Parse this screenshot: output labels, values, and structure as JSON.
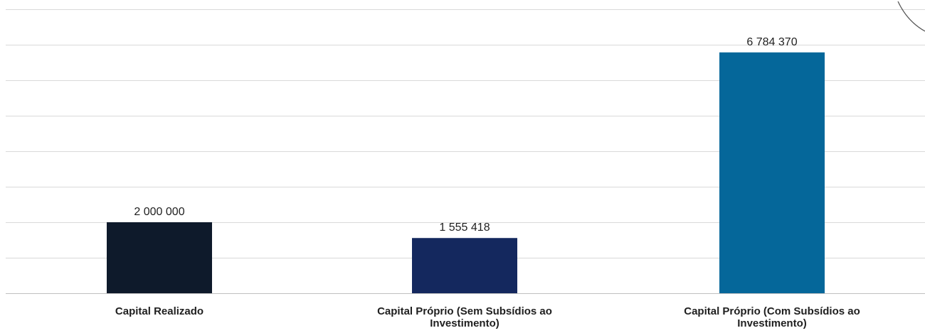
{
  "chart_data": {
    "type": "bar",
    "categories": [
      "Capital Realizado",
      "Capital Próprio (Sem Subsídios ao Investimento)",
      "Capital Próprio (Com Subsídios ao Investimento)"
    ],
    "category_label_lines": [
      [
        "Capital Realizado"
      ],
      [
        "Capital Próprio (Sem Subsídios ao",
        "Investimento)"
      ],
      [
        "Capital Próprio (Com Subsídios ao",
        "Investimento)"
      ]
    ],
    "values": [
      2000000,
      1555418,
      6784370
    ],
    "value_labels": [
      "2 000 000",
      "1 555 418",
      "6 784 370"
    ],
    "colors": [
      "#0e1a2b",
      "#14285e",
      "#05679a"
    ],
    "ylim": [
      0,
      8000000
    ],
    "y_tick_step": 1000000,
    "grid": true,
    "title": "",
    "xlabel": "",
    "ylabel": ""
  }
}
